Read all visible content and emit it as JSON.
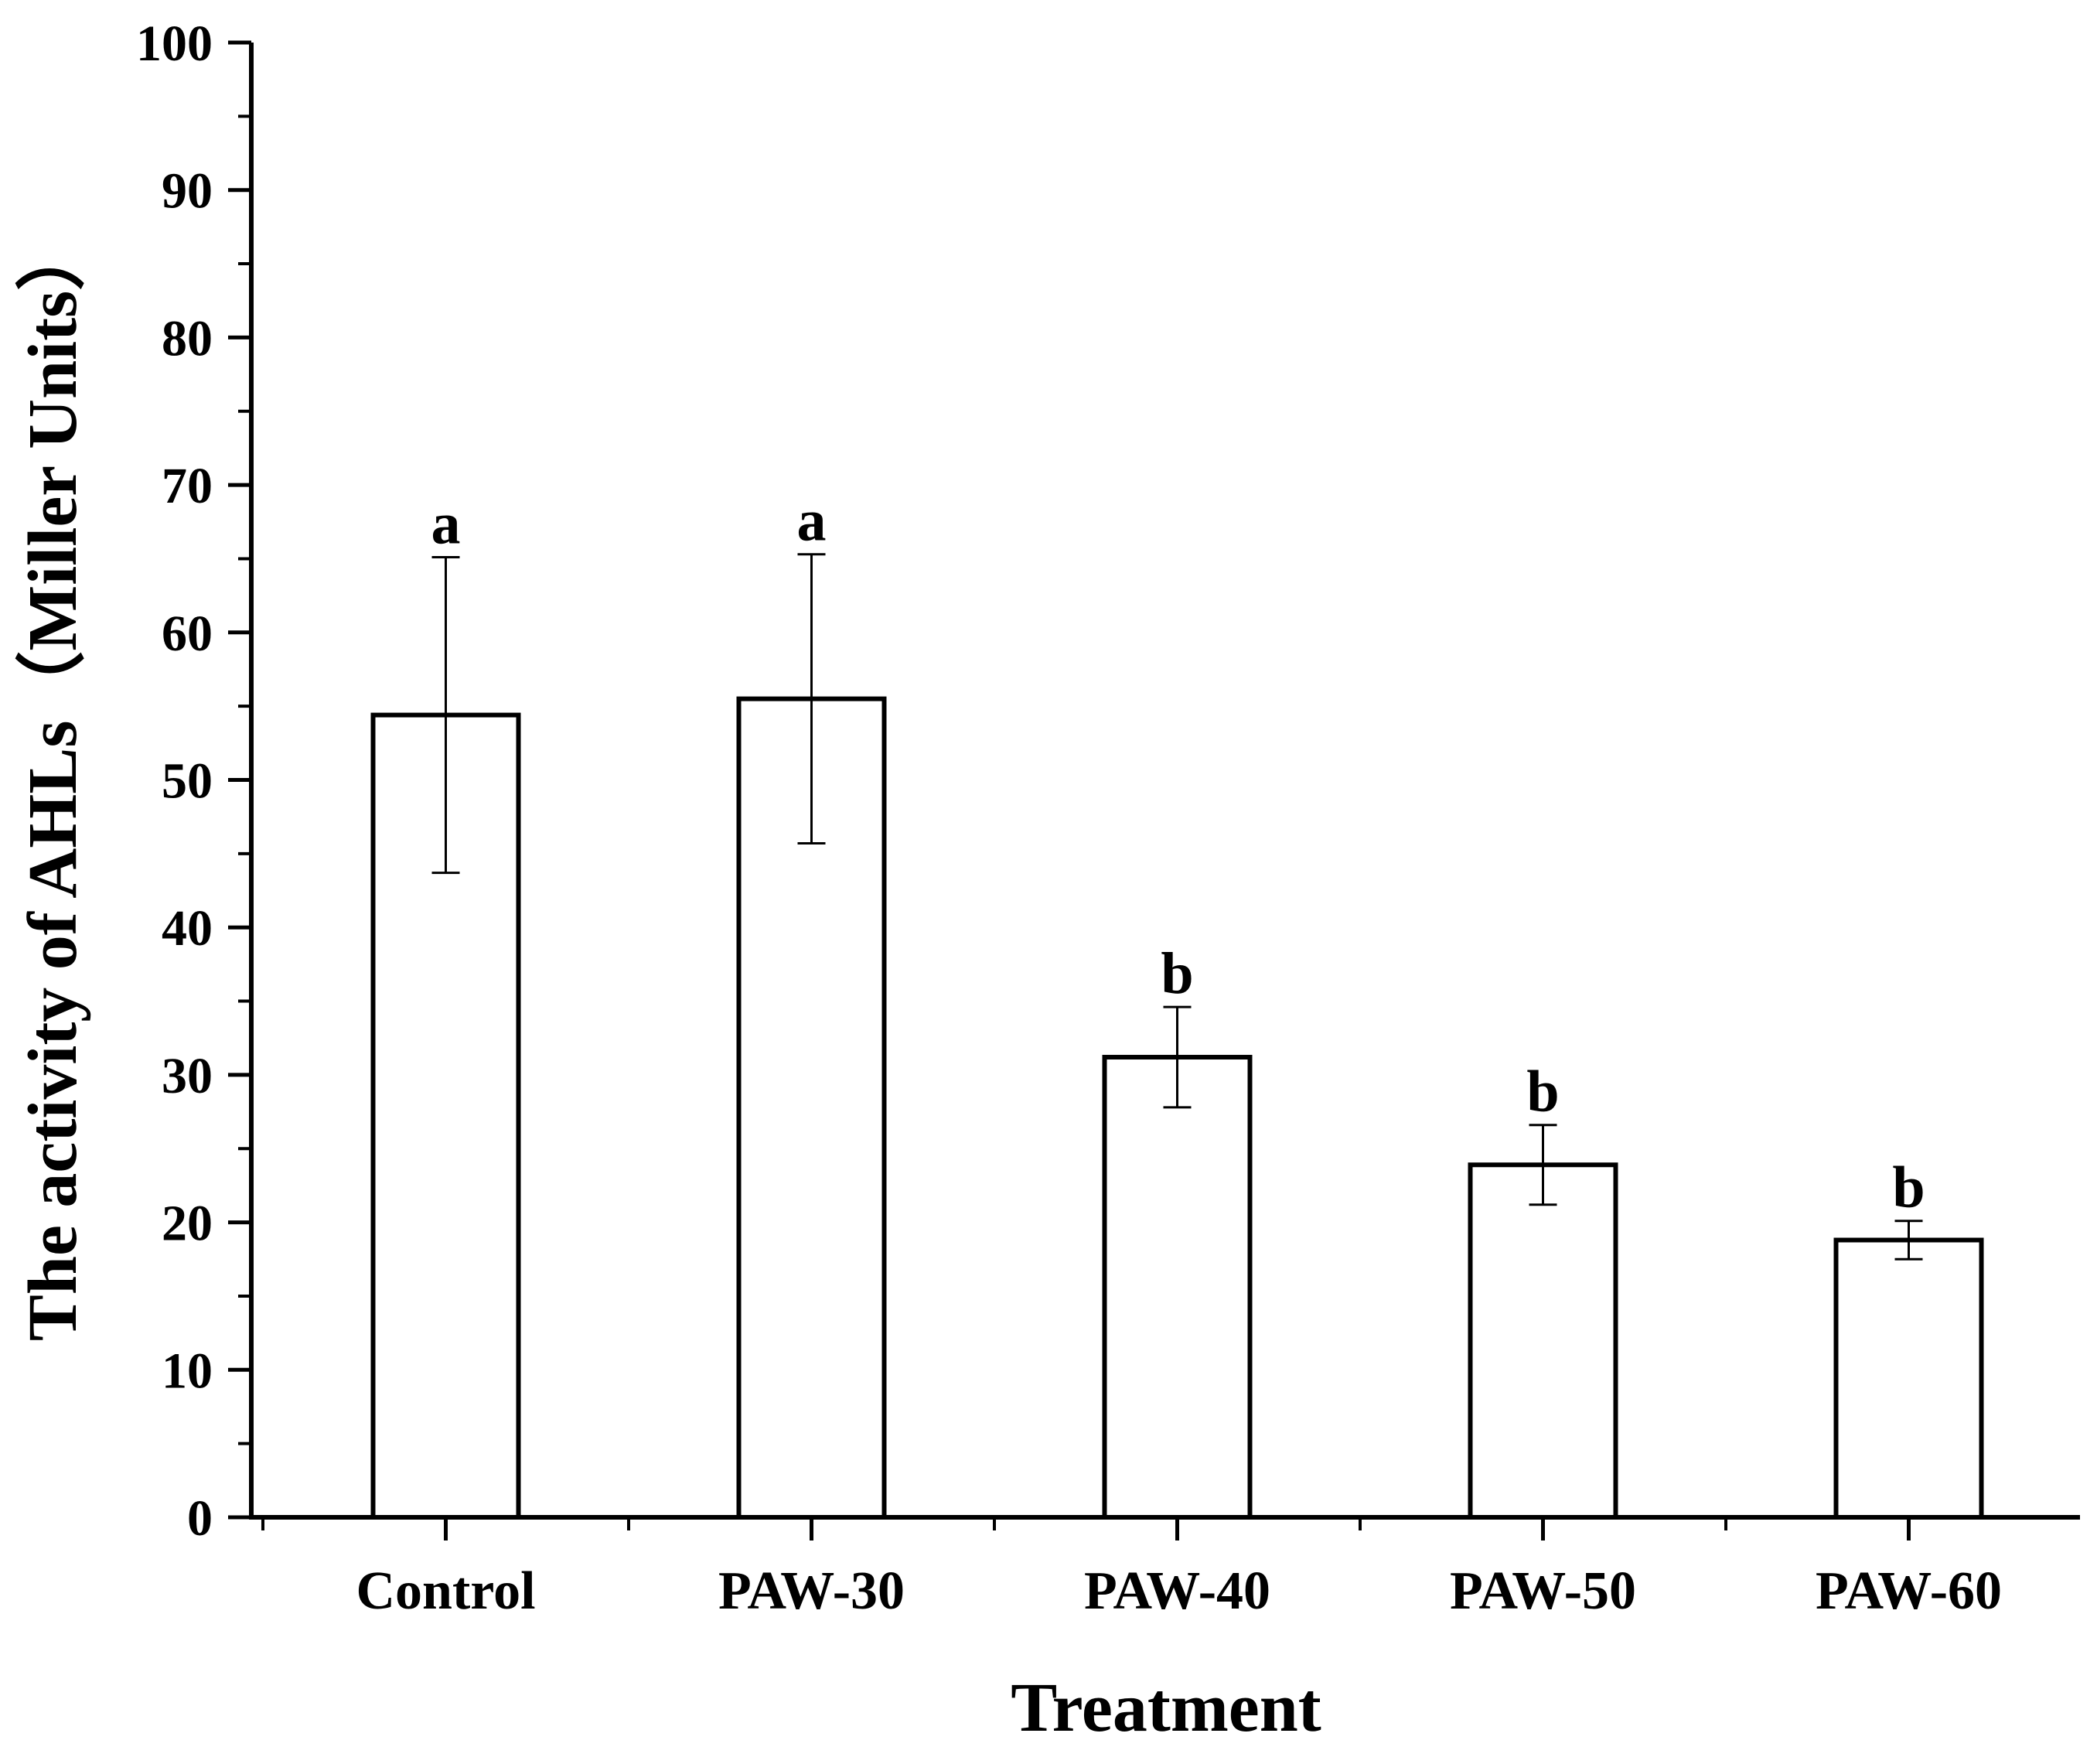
{
  "chart_data": {
    "type": "bar",
    "title": "",
    "xlabel": "Treatment",
    "ylabel": "The activity of AHLs（Miller Units）",
    "ylim": [
      0,
      100
    ],
    "yticks": [
      0,
      10,
      20,
      30,
      40,
      50,
      60,
      70,
      80,
      90,
      100
    ],
    "categories": [
      "Control",
      "PAW-30",
      "PAW-40",
      "PAW-50",
      "PAW-60"
    ],
    "values": [
      54.4,
      55.5,
      31.2,
      23.9,
      18.8
    ],
    "errors": [
      10.7,
      9.8,
      3.4,
      2.7,
      1.3
    ],
    "significance": [
      "a",
      "a",
      "b",
      "b",
      "b"
    ],
    "grid": false,
    "legend": "none",
    "colors": {
      "bar_fill": "#ffffff",
      "bar_stroke": "#000000",
      "axis": "#000000"
    }
  }
}
